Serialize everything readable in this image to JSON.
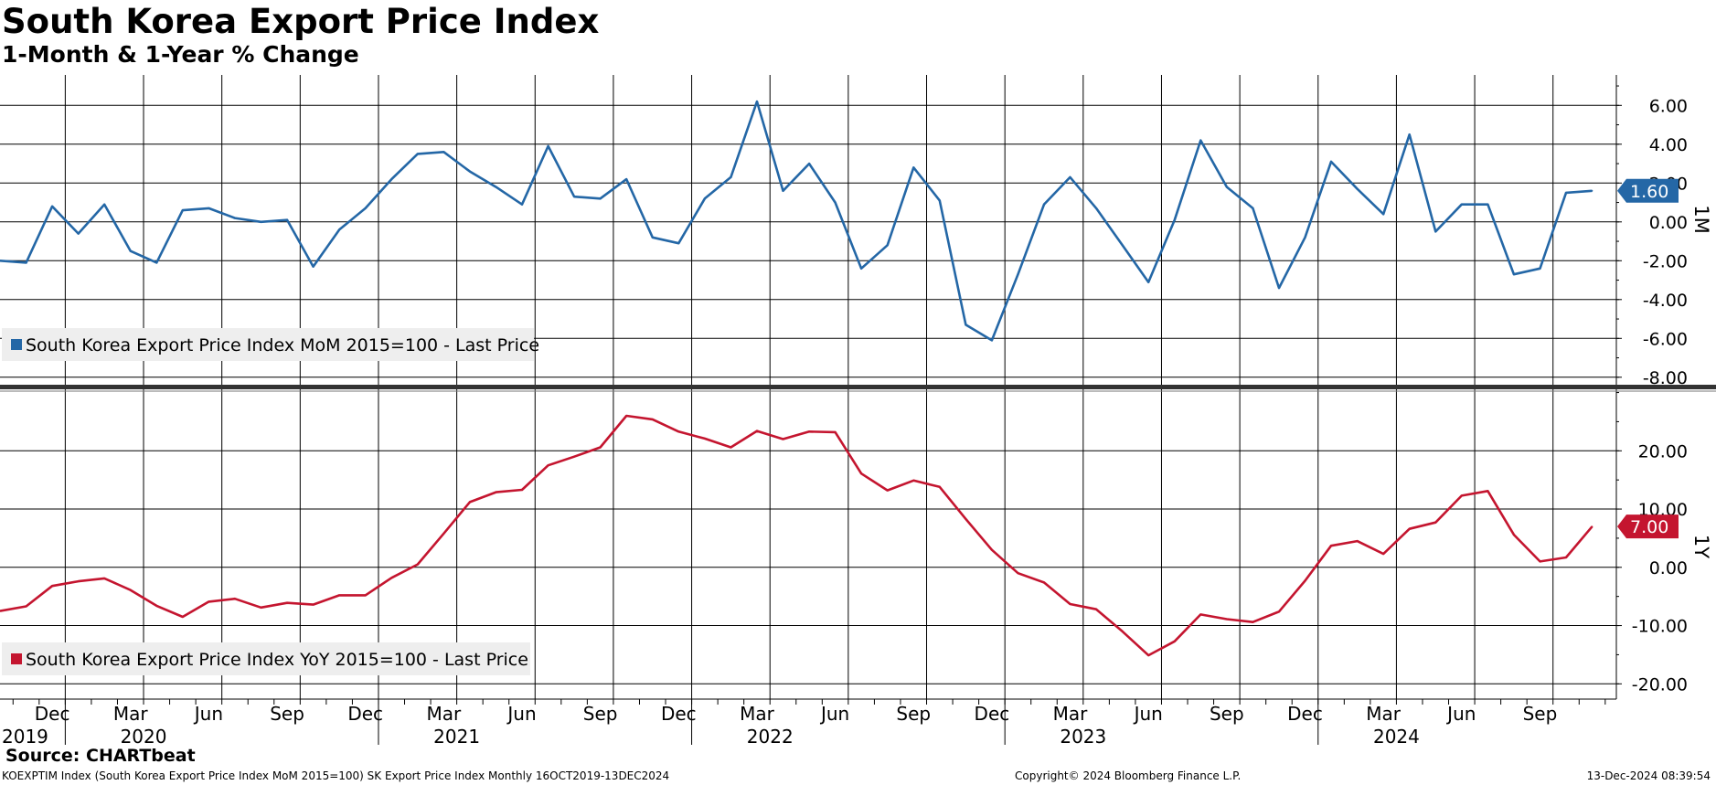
{
  "title": "South Korea Export Price Index",
  "subtitle": "1-Month & 1-Year % Change",
  "footer": {
    "source": "Source: CHARTbeat",
    "left": "KOEXPTIM Index (South Korea Export Price Index MoM 2015=100) SK Export Price Index  Monthly 16OCT2019-13DEC2024",
    "center": "Copyright© 2024 Bloomberg Finance L.P.",
    "right": "13-Dec-2024 08:39:54"
  },
  "colors": {
    "mom": "#2467a6",
    "yoy": "#c4152f",
    "grid": "#000000",
    "legend_bg": "#eeeeee"
  },
  "chart_data": [
    {
      "type": "line",
      "name": "top-panel",
      "series": [
        {
          "name": "South Korea Export Price Index MoM 2015=100 - Last Price",
          "values": [
            -2.0,
            -2.1,
            0.8,
            -0.6,
            0.9,
            -1.5,
            -2.1,
            0.6,
            0.7,
            0.2,
            0.0,
            0.1,
            -2.3,
            -0.4,
            0.7,
            2.2,
            3.5,
            3.6,
            2.6,
            1.8,
            0.9,
            3.9,
            1.3,
            1.2,
            2.2,
            -0.8,
            -1.1,
            1.2,
            2.3,
            6.2,
            1.6,
            3.0,
            1.0,
            -2.4,
            -1.2,
            2.8,
            1.1,
            -5.3,
            -6.1,
            -2.7,
            0.9,
            2.3,
            0.7,
            -1.2,
            -3.1,
            0.1,
            4.2,
            1.8,
            0.7,
            -3.4,
            -0.8,
            3.1,
            1.7,
            0.4,
            4.5,
            -0.5,
            0.9,
            0.9,
            -2.7,
            -2.4,
            1.5,
            1.6
          ]
        }
      ],
      "x_start": "Oct 2019",
      "ylim": [
        -8,
        7
      ],
      "yticks": [
        "6.00",
        "4.00",
        "2.00",
        "0.00",
        "-2.00",
        "-4.00",
        "-6.00",
        "-8.00"
      ],
      "axis_label": "1M",
      "last_label": "1.60",
      "legend": "South Korea Export Price Index MoM 2015=100 - Last Price"
    },
    {
      "type": "line",
      "name": "bottom-panel",
      "series": [
        {
          "name": "South Korea Export Price Index YoY 2015=100 - Last Price",
          "values": [
            -7.5,
            -6.7,
            -3.2,
            -2.4,
            -1.9,
            -3.9,
            -6.6,
            -8.5,
            -5.9,
            -5.4,
            -6.9,
            -6.1,
            -6.4,
            -4.8,
            -4.8,
            -1.8,
            0.5,
            5.8,
            11.2,
            12.9,
            13.3,
            17.5,
            19.0,
            20.6,
            26.0,
            25.4,
            23.3,
            22.1,
            20.6,
            23.4,
            22.0,
            23.3,
            23.2,
            16.1,
            13.2,
            14.9,
            13.8,
            8.3,
            3.0,
            -1.0,
            -2.6,
            -6.3,
            -7.2,
            -11.0,
            -15.1,
            -12.7,
            -8.1,
            -8.9,
            -9.4,
            -7.6,
            -2.3,
            3.7,
            4.5,
            2.3,
            6.6,
            7.7,
            12.3,
            13.1,
            5.6,
            1.0,
            1.7,
            7.0
          ]
        }
      ],
      "ylim": [
        -22,
        30
      ],
      "yticks": [
        "20.00",
        "10.00",
        "0.00",
        "-10.00",
        "-20.00"
      ],
      "axis_label": "1Y",
      "last_label": "7.00",
      "legend": "South Korea Export Price Index YoY 2015=100 - Last Price"
    }
  ],
  "x_axis": {
    "month_labels": [
      "Dec",
      "Mar",
      "Jun",
      "Sep",
      "Dec",
      "Mar",
      "Jun",
      "Sep",
      "Dec",
      "Mar",
      "Jun",
      "Sep",
      "Dec",
      "Mar",
      "Jun",
      "Sep",
      "Dec",
      "Mar",
      "Jun",
      "Sep"
    ],
    "month_label_index": [
      2,
      5,
      8,
      11,
      14,
      17,
      20,
      23,
      26,
      29,
      32,
      35,
      38,
      41,
      44,
      47,
      50,
      53,
      56,
      59
    ],
    "year_labels": [
      "2019",
      "2020",
      "2021",
      "2022",
      "2023",
      "2024"
    ],
    "year_label_index": [
      -0.5,
      5.5,
      17.5,
      29.5,
      41.5,
      53.5
    ]
  }
}
